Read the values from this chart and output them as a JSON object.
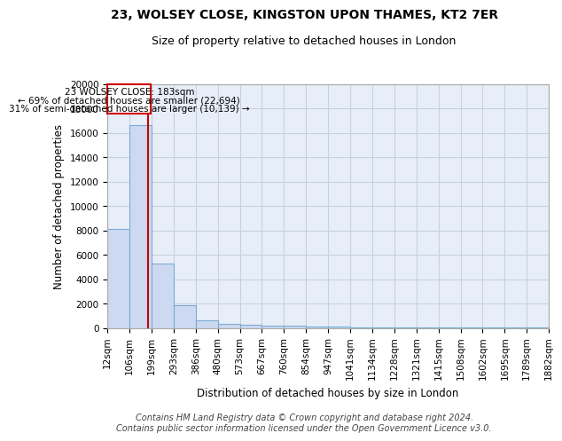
{
  "title1": "23, WOLSEY CLOSE, KINGSTON UPON THAMES, KT2 7ER",
  "title2": "Size of property relative to detached houses in London",
  "xlabel": "Distribution of detached houses by size in London",
  "ylabel": "Number of detached properties",
  "bins": [
    "12sqm",
    "106sqm",
    "199sqm",
    "293sqm",
    "386sqm",
    "480sqm",
    "573sqm",
    "667sqm",
    "760sqm",
    "854sqm",
    "947sqm",
    "1041sqm",
    "1134sqm",
    "1228sqm",
    "1321sqm",
    "1415sqm",
    "1508sqm",
    "1602sqm",
    "1695sqm",
    "1789sqm",
    "1882sqm"
  ],
  "bar_heights": [
    8100,
    16600,
    5300,
    1850,
    650,
    350,
    250,
    180,
    150,
    120,
    80,
    60,
    40,
    30,
    20,
    15,
    12,
    10,
    8,
    6
  ],
  "bar_color": "#ccd9f0",
  "bar_edge_color": "#7aadd4",
  "subject_label": "23 WOLSEY CLOSE: 183sqm",
  "annotation_line1": "← 69% of detached houses are smaller (22,694)",
  "annotation_line2": "31% of semi-detached houses are larger (10,139) →",
  "red_line_color": "#cc0000",
  "ylim": [
    0,
    20000
  ],
  "yticks": [
    0,
    2000,
    4000,
    6000,
    8000,
    10000,
    12000,
    14000,
    16000,
    18000,
    20000
  ],
  "footer1": "Contains HM Land Registry data © Crown copyright and database right 2024.",
  "footer2": "Contains public sector information licensed under the Open Government Licence v3.0.",
  "background_color": "#e8eef8",
  "grid_color": "#c8d0e0",
  "title1_fontsize": 10,
  "title2_fontsize": 9,
  "axis_label_fontsize": 8.5,
  "tick_fontsize": 7.5,
  "annotation_fontsize": 7.5,
  "footer_fontsize": 7
}
